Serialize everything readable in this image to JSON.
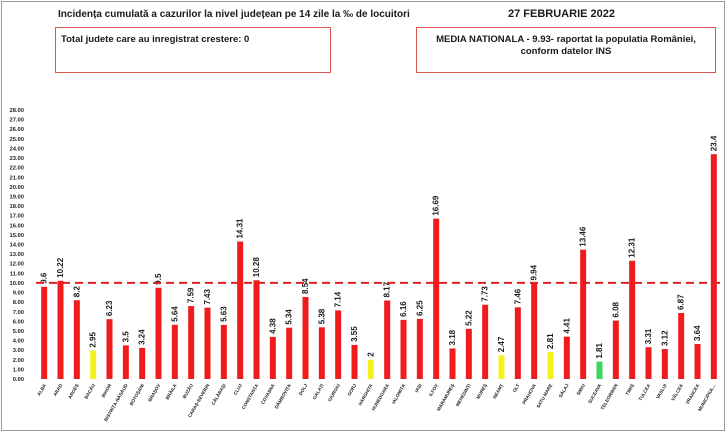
{
  "header": {
    "title": "Incidența cumulată a cazurilor la nivel județean pe 14 zile la ‰ de locuitori",
    "date": "27 FEBRUARIE 2022"
  },
  "info_boxes": {
    "left_text": "Total judete care au inregistrat crestere: 0",
    "right_line1": "MEDIA NATIONALA -  9.93-  raportat la populatia României,",
    "right_line2": "conform datelor INS"
  },
  "colors": {
    "bar_default": "#ee1c1c",
    "bar_yellow": "#f2f21f",
    "bar_green": "#3bd65a",
    "threshold_line": "#e02020"
  },
  "chart_data": {
    "type": "bar",
    "title": "",
    "xlabel": "",
    "ylabel": "",
    "ylim": [
      0,
      28
    ],
    "y_ticks": [
      "0.00",
      "1.00",
      "2.00",
      "3.00",
      "4.00",
      "5.00",
      "6.00",
      "7.00",
      "8.00",
      "9.00",
      "10.00",
      "11.00",
      "12.00",
      "13.00",
      "14.00",
      "15.00",
      "16.00",
      "17.00",
      "18.00",
      "19.00",
      "20.00",
      "21.00",
      "22.00",
      "23.00",
      "24.00",
      "25.00",
      "26.00",
      "27.00",
      "28.00"
    ],
    "reference_line": 10,
    "grid": false,
    "categories": [
      "ALBA",
      "ARAD",
      "ARGEȘ",
      "BACĂU",
      "BIHOR",
      "BISTRIȚA-NĂSĂUD",
      "BOTOȘANI",
      "BRAȘOV",
      "BRĂILA",
      "BUZĂU",
      "CARAȘ-SEVERIN",
      "CĂLĂRAȘI",
      "CLUJ",
      "CONSTANȚA",
      "COVASNA",
      "DÂMBOVIȚA",
      "DOLJ",
      "GALAȚI",
      "GIURGIU",
      "GORJ",
      "HARGHITA",
      "HUNEDOARA",
      "IALOMIȚA",
      "IAȘI",
      "ILFOV",
      "MARAMUREȘ",
      "MEHEDINȚI",
      "MUREȘ",
      "NEAMȚ",
      "OLT",
      "PRAHOVA",
      "SATU MARE",
      "SĂLAJ",
      "SIBIU",
      "SUCEAVA",
      "TELEORMAN",
      "TIMIȘ",
      "TULCEA",
      "VASLUI",
      "VÂLCEA",
      "VRANCEA",
      "MUNICIPIUL..."
    ],
    "values": [
      9.6,
      10.22,
      8.2,
      2.95,
      6.23,
      3.5,
      3.24,
      9.5,
      5.64,
      7.59,
      7.43,
      5.63,
      14.31,
      10.28,
      4.38,
      5.34,
      8.54,
      5.38,
      7.14,
      3.55,
      2.0,
      8.17,
      6.16,
      6.25,
      16.69,
      3.18,
      5.22,
      7.73,
      2.47,
      7.46,
      9.94,
      2.81,
      4.41,
      13.46,
      1.81,
      6.08,
      12.31,
      3.31,
      3.12,
      6.87,
      3.64,
      23.4
    ],
    "data_labels": [
      "9.6",
      "10.22",
      "8.2",
      "2.95",
      "6.23",
      "3.5",
      "3.24",
      "9.5",
      "5.64",
      "7.59",
      "7.43",
      "5.63",
      "14.31",
      "10.28",
      "4.38",
      "5.34",
      "8.54",
      "5.38",
      "7.14",
      "3.55",
      "2",
      "8.17",
      "6.16",
      "6.25",
      "16.69",
      "3.18",
      "5.22",
      "7.73",
      "2.47",
      "7.46",
      "9.94",
      "2.81",
      "4.41",
      "13.46",
      "1.81",
      "6.08",
      "12.31",
      "3.31",
      "3.12",
      "6.87",
      "3.64",
      "23.4"
    ],
    "bar_colors": [
      "red",
      "red",
      "red",
      "yellow",
      "red",
      "red",
      "red",
      "red",
      "red",
      "red",
      "red",
      "red",
      "red",
      "red",
      "red",
      "red",
      "red",
      "red",
      "red",
      "red",
      "yellow",
      "red",
      "red",
      "red",
      "red",
      "red",
      "red",
      "red",
      "yellow",
      "red",
      "red",
      "yellow",
      "red",
      "red",
      "green",
      "red",
      "red",
      "red",
      "red",
      "red",
      "red",
      "red"
    ]
  }
}
